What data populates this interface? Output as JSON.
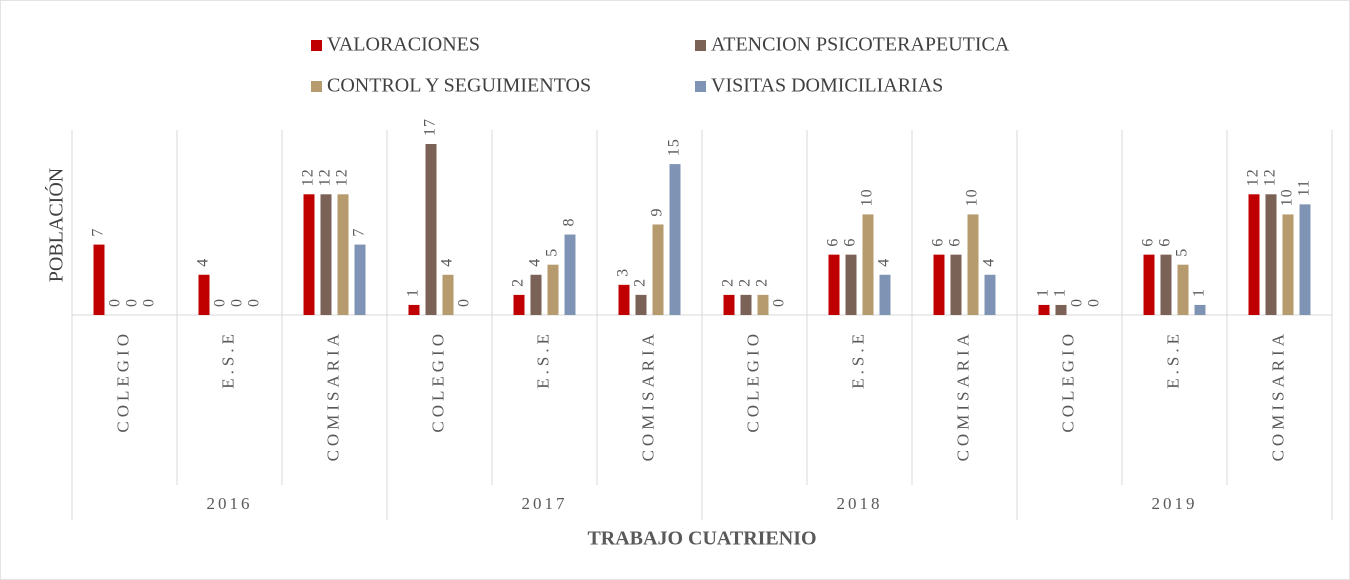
{
  "chart_data": {
    "type": "bar",
    "y_label": "POBLACIÓN",
    "x_label": "TRABAJO CUATRIENIO",
    "groups": [
      {
        "name": "2016",
        "categories": [
          "COLEGIO",
          "E.S.E",
          "COMISARIA"
        ]
      },
      {
        "name": "2017",
        "categories": [
          "COLEGIO",
          "E.S.E",
          "COMISARIA"
        ]
      },
      {
        "name": "2018",
        "categories": [
          "COLEGIO",
          "E.S.E",
          "COMISARIA"
        ]
      },
      {
        "name": "2019",
        "categories": [
          "COLEGIO",
          "E.S.E",
          "COMISARIA"
        ]
      }
    ],
    "series": [
      {
        "name": "VALORACIONES",
        "color": "#c00000",
        "values": [
          7,
          4,
          12,
          1,
          2,
          3,
          2,
          6,
          6,
          1,
          6,
          12
        ]
      },
      {
        "name": "ATENCION PSICOTERAPEUTICA",
        "color": "#7b6257",
        "values": [
          0,
          0,
          12,
          17,
          4,
          2,
          2,
          6,
          6,
          1,
          6,
          12
        ]
      },
      {
        "name": "CONTROL Y SEGUIMIENTOS",
        "color": "#b59b6e",
        "values": [
          0,
          0,
          12,
          4,
          5,
          9,
          2,
          10,
          10,
          0,
          5,
          10
        ]
      },
      {
        "name": "VISITAS DOMICILIARIAS",
        "color": "#7f94b5",
        "values": [
          0,
          0,
          7,
          0,
          8,
          15,
          0,
          4,
          4,
          0,
          1,
          11
        ]
      }
    ],
    "data_labels": true
  }
}
